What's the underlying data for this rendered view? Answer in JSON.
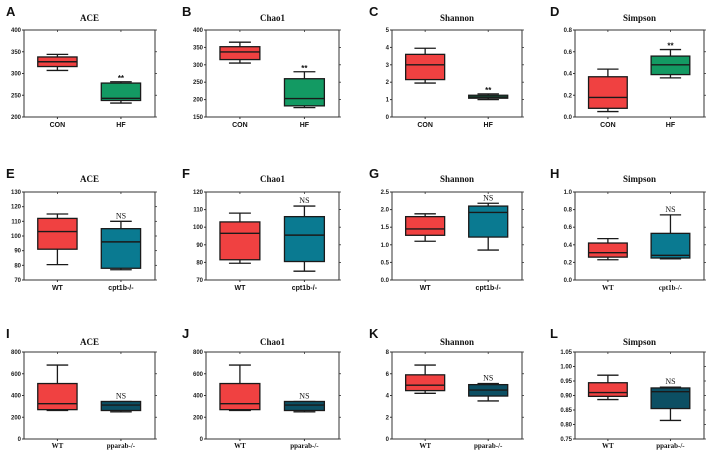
{
  "colors": {
    "red": "#f04141",
    "green": "#139a63",
    "teal": "#0a7a91",
    "dark_teal": "#0c4f63",
    "axis": "#333333",
    "line": "#1a1a1a"
  },
  "chart_data": [
    {
      "letter": "A",
      "type": "box",
      "title": "ACE",
      "ylim": [
        200,
        400
      ],
      "yticks": [
        200,
        250,
        300,
        350,
        400
      ],
      "categories": [
        "CON",
        "HF"
      ],
      "label_style": "sans",
      "significance": "**",
      "sig_on": 1,
      "series": [
        {
          "name": "CON",
          "color": "red",
          "min": 307,
          "q1": 316,
          "median": 327,
          "q3": 338,
          "max": 344
        },
        {
          "name": "HF",
          "color": "green",
          "min": 232,
          "q1": 238,
          "median": 243,
          "q3": 278,
          "max": 281
        }
      ]
    },
    {
      "letter": "B",
      "type": "box",
      "title": "Chao1",
      "ylim": [
        150,
        400
      ],
      "yticks": [
        150,
        200,
        250,
        300,
        350,
        400
      ],
      "categories": [
        "CON",
        "HF"
      ],
      "label_style": "sans",
      "significance": "**",
      "sig_on": 1,
      "series": [
        {
          "name": "CON",
          "color": "red",
          "min": 305,
          "q1": 315,
          "median": 337,
          "q3": 352,
          "max": 365
        },
        {
          "name": "HF",
          "color": "green",
          "min": 177,
          "q1": 182,
          "median": 203,
          "q3": 260,
          "max": 280
        }
      ]
    },
    {
      "letter": "C",
      "type": "box",
      "title": "Shannon",
      "ylim": [
        0,
        5
      ],
      "yticks": [
        0,
        1,
        2,
        3,
        4,
        5
      ],
      "categories": [
        "CON",
        "HF"
      ],
      "label_style": "sans",
      "significance": "**",
      "sig_on": 1,
      "series": [
        {
          "name": "CON",
          "color": "red",
          "min": 1.95,
          "q1": 2.15,
          "median": 3.0,
          "q3": 3.6,
          "max": 3.95
        },
        {
          "name": "HF",
          "color": "green",
          "min": 1.0,
          "q1": 1.08,
          "median": 1.15,
          "q3": 1.25,
          "max": 1.33
        }
      ]
    },
    {
      "letter": "D",
      "type": "box",
      "title": "Simpson",
      "ylim": [
        0.0,
        0.8
      ],
      "yticks": [
        "0.0",
        "0.2",
        "0.4",
        "0.6",
        "0.8"
      ],
      "categories": [
        "CON",
        "HF"
      ],
      "label_style": "sans",
      "significance": "**",
      "sig_on": 1,
      "series": [
        {
          "name": "CON",
          "color": "red",
          "min": 0.05,
          "q1": 0.08,
          "median": 0.18,
          "q3": 0.37,
          "max": 0.44
        },
        {
          "name": "HF",
          "color": "green",
          "min": 0.36,
          "q1": 0.39,
          "median": 0.48,
          "q3": 0.56,
          "max": 0.62
        }
      ]
    },
    {
      "letter": "E",
      "type": "box",
      "title": "ACE",
      "ylim": [
        70,
        130
      ],
      "yticks": [
        70,
        80,
        90,
        100,
        110,
        120,
        130
      ],
      "categories": [
        "WT",
        "cpt1b-/-"
      ],
      "label_style": "sans",
      "significance": "NS",
      "sig_on": 1,
      "series": [
        {
          "name": "WT",
          "color": "red",
          "min": 80.5,
          "q1": 91,
          "median": 103,
          "q3": 112,
          "max": 115
        },
        {
          "name": "cpt1b-/-",
          "color": "teal",
          "min": 77,
          "q1": 78,
          "median": 96,
          "q3": 105,
          "max": 110
        }
      ]
    },
    {
      "letter": "F",
      "type": "box",
      "title": "Chao1",
      "ylim": [
        70,
        120
      ],
      "yticks": [
        70,
        80,
        90,
        100,
        110,
        120
      ],
      "categories": [
        "WT",
        "cpt1b-/-"
      ],
      "label_style": "sans",
      "significance": "NS",
      "sig_on": 1,
      "series": [
        {
          "name": "WT",
          "color": "red",
          "min": 79.5,
          "q1": 81.5,
          "median": 96.5,
          "q3": 103,
          "max": 108
        },
        {
          "name": "cpt1b-/-",
          "color": "teal",
          "min": 75,
          "q1": 80.5,
          "median": 95.5,
          "q3": 106,
          "max": 112
        }
      ]
    },
    {
      "letter": "G",
      "type": "box",
      "title": "Shannon",
      "ylim": [
        0.0,
        2.5
      ],
      "yticks": [
        "0.0",
        "0.5",
        "1.0",
        "1.5",
        "2.0",
        "2.5"
      ],
      "categories": [
        "WT",
        "cpt1b-/-"
      ],
      "label_style": "sans",
      "significance": "NS",
      "sig_on": 1,
      "series": [
        {
          "name": "WT",
          "color": "red",
          "min": 1.1,
          "q1": 1.27,
          "median": 1.45,
          "q3": 1.8,
          "max": 1.88
        },
        {
          "name": "cpt1b-/-",
          "color": "teal",
          "min": 0.85,
          "q1": 1.22,
          "median": 1.92,
          "q3": 2.1,
          "max": 2.18
        }
      ]
    },
    {
      "letter": "H",
      "type": "box",
      "title": "Simpson",
      "ylim": [
        0.0,
        1.0
      ],
      "yticks": [
        "0.0",
        "0.2",
        "0.4",
        "0.6",
        "0.8",
        "1.0"
      ],
      "categories": [
        "WT",
        "cpt1b-/-"
      ],
      "label_style": "serif",
      "significance": "NS",
      "sig_on": 1,
      "series": [
        {
          "name": "WT",
          "color": "red",
          "min": 0.23,
          "q1": 0.26,
          "median": 0.31,
          "q3": 0.42,
          "max": 0.47
        },
        {
          "name": "cpt1b-/-",
          "color": "teal",
          "min": 0.24,
          "q1": 0.25,
          "median": 0.28,
          "q3": 0.53,
          "max": 0.74
        }
      ]
    },
    {
      "letter": "I",
      "type": "box",
      "title": "ACE",
      "ylim": [
        0,
        800
      ],
      "yticks": [
        0,
        200,
        400,
        600,
        800
      ],
      "categories": [
        "WT",
        "pparab-/-"
      ],
      "label_style": "serif",
      "significance": "NS",
      "sig_on": 1,
      "series": [
        {
          "name": "WT",
          "color": "red",
          "min": 262,
          "q1": 270,
          "median": 325,
          "q3": 510,
          "max": 680
        },
        {
          "name": "pparab-/-",
          "color": "dark_teal",
          "min": 250,
          "q1": 262,
          "median": 312,
          "q3": 345,
          "max": 345
        }
      ]
    },
    {
      "letter": "J",
      "type": "box",
      "title": "Chao1",
      "ylim": [
        0,
        800
      ],
      "yticks": [
        0,
        200,
        400,
        600,
        800
      ],
      "categories": [
        "WT",
        "pparab-/-"
      ],
      "label_style": "serif",
      "significance": "NS",
      "sig_on": 1,
      "series": [
        {
          "name": "WT",
          "color": "red",
          "min": 262,
          "q1": 270,
          "median": 325,
          "q3": 510,
          "max": 680
        },
        {
          "name": "pparab-/-",
          "color": "dark_teal",
          "min": 250,
          "q1": 262,
          "median": 312,
          "q3": 345,
          "max": 345
        }
      ]
    },
    {
      "letter": "K",
      "type": "box",
      "title": "Shannon",
      "ylim": [
        0,
        8
      ],
      "yticks": [
        0,
        2,
        4,
        6,
        8
      ],
      "categories": [
        "WT",
        "pparab-/-"
      ],
      "label_style": "serif",
      "significance": "NS",
      "sig_on": 1,
      "series": [
        {
          "name": "WT",
          "color": "red",
          "min": 4.2,
          "q1": 4.45,
          "median": 4.95,
          "q3": 5.9,
          "max": 6.8
        },
        {
          "name": "pparab-/-",
          "color": "dark_teal",
          "min": 3.5,
          "q1": 3.95,
          "median": 4.5,
          "q3": 5.0,
          "max": 5.1
        }
      ]
    },
    {
      "letter": "L",
      "type": "box",
      "title": "Simpson",
      "ylim": [
        0.75,
        1.05
      ],
      "yticks": [
        "0.75",
        "0.80",
        "0.85",
        "0.90",
        "0.95",
        "1.00",
        "1.05"
      ],
      "categories": [
        "WT",
        "pparab-/-"
      ],
      "label_style": "serif",
      "significance": "NS",
      "sig_on": 1,
      "series": [
        {
          "name": "WT",
          "color": "red",
          "min": 0.886,
          "q1": 0.897,
          "median": 0.91,
          "q3": 0.944,
          "max": 0.97
        },
        {
          "name": "pparab-/-",
          "color": "dark_teal",
          "min": 0.814,
          "q1": 0.855,
          "median": 0.913,
          "q3": 0.926,
          "max": 0.929
        }
      ]
    }
  ]
}
